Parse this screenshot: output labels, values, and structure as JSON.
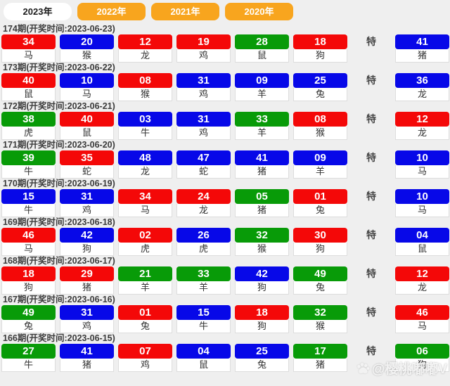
{
  "colors": {
    "red": "#f40808",
    "blue": "#0708e8",
    "green": "#089b08",
    "orange": "#f8a51e",
    "bg": "#efefef"
  },
  "tabs": [
    {
      "label": "2023年",
      "active": true
    },
    {
      "label": "2022年",
      "active": false
    },
    {
      "label": "2021年",
      "active": false
    },
    {
      "label": "2020年",
      "active": false
    }
  ],
  "special_label": "特",
  "watermark": {
    "text": "@樱桃嘟嘟V",
    "icon": "paw-icon"
  },
  "rows": [
    {
      "period": "174期",
      "time_label": "(开奖时间:2023-06-23)",
      "numbers": [
        {
          "num": "34",
          "color": "red",
          "animal": "马"
        },
        {
          "num": "20",
          "color": "blue",
          "animal": "猴"
        },
        {
          "num": "12",
          "color": "red",
          "animal": "龙"
        },
        {
          "num": "19",
          "color": "red",
          "animal": "鸡"
        },
        {
          "num": "28",
          "color": "green",
          "animal": "鼠"
        },
        {
          "num": "18",
          "color": "red",
          "animal": "狗"
        }
      ],
      "special": {
        "num": "41",
        "color": "blue",
        "animal": "猪"
      }
    },
    {
      "period": "173期",
      "time_label": "(开奖时间:2023-06-22)",
      "numbers": [
        {
          "num": "40",
          "color": "red",
          "animal": "鼠"
        },
        {
          "num": "10",
          "color": "blue",
          "animal": "马"
        },
        {
          "num": "08",
          "color": "red",
          "animal": "猴"
        },
        {
          "num": "31",
          "color": "blue",
          "animal": "鸡"
        },
        {
          "num": "09",
          "color": "blue",
          "animal": "羊"
        },
        {
          "num": "25",
          "color": "blue",
          "animal": "兔"
        }
      ],
      "special": {
        "num": "36",
        "color": "blue",
        "animal": "龙"
      }
    },
    {
      "period": "172期",
      "time_label": "(开奖时间:2023-06-21)",
      "numbers": [
        {
          "num": "38",
          "color": "green",
          "animal": "虎"
        },
        {
          "num": "40",
          "color": "red",
          "animal": "鼠"
        },
        {
          "num": "03",
          "color": "blue",
          "animal": "牛"
        },
        {
          "num": "31",
          "color": "blue",
          "animal": "鸡"
        },
        {
          "num": "33",
          "color": "green",
          "animal": "羊"
        },
        {
          "num": "08",
          "color": "red",
          "animal": "猴"
        }
      ],
      "special": {
        "num": "12",
        "color": "red",
        "animal": "龙"
      }
    },
    {
      "period": "171期",
      "time_label": "(开奖时间:2023-06-20)",
      "numbers": [
        {
          "num": "39",
          "color": "green",
          "animal": "牛"
        },
        {
          "num": "35",
          "color": "red",
          "animal": "蛇"
        },
        {
          "num": "48",
          "color": "blue",
          "animal": "龙"
        },
        {
          "num": "47",
          "color": "blue",
          "animal": "蛇"
        },
        {
          "num": "41",
          "color": "blue",
          "animal": "猪"
        },
        {
          "num": "09",
          "color": "blue",
          "animal": "羊"
        }
      ],
      "special": {
        "num": "10",
        "color": "blue",
        "animal": "马"
      }
    },
    {
      "period": "170期",
      "time_label": "(开奖时间:2023-06-19)",
      "numbers": [
        {
          "num": "15",
          "color": "blue",
          "animal": "牛"
        },
        {
          "num": "31",
          "color": "blue",
          "animal": "鸡"
        },
        {
          "num": "34",
          "color": "red",
          "animal": "马"
        },
        {
          "num": "24",
          "color": "red",
          "animal": "龙"
        },
        {
          "num": "05",
          "color": "green",
          "animal": "猪"
        },
        {
          "num": "01",
          "color": "red",
          "animal": "兔"
        }
      ],
      "special": {
        "num": "10",
        "color": "blue",
        "animal": "马"
      }
    },
    {
      "period": "169期",
      "time_label": "(开奖时间:2023-06-18)",
      "numbers": [
        {
          "num": "46",
          "color": "red",
          "animal": "马"
        },
        {
          "num": "42",
          "color": "blue",
          "animal": "狗"
        },
        {
          "num": "02",
          "color": "red",
          "animal": "虎"
        },
        {
          "num": "26",
          "color": "blue",
          "animal": "虎"
        },
        {
          "num": "32",
          "color": "green",
          "animal": "猴"
        },
        {
          "num": "30",
          "color": "red",
          "animal": "狗"
        }
      ],
      "special": {
        "num": "04",
        "color": "blue",
        "animal": "鼠"
      }
    },
    {
      "period": "168期",
      "time_label": "(开奖时间:2023-06-17)",
      "numbers": [
        {
          "num": "18",
          "color": "red",
          "animal": "狗"
        },
        {
          "num": "29",
          "color": "red",
          "animal": "猪"
        },
        {
          "num": "21",
          "color": "green",
          "animal": "羊"
        },
        {
          "num": "33",
          "color": "green",
          "animal": "羊"
        },
        {
          "num": "42",
          "color": "blue",
          "animal": "狗"
        },
        {
          "num": "49",
          "color": "green",
          "animal": "兔"
        }
      ],
      "special": {
        "num": "12",
        "color": "red",
        "animal": "龙"
      }
    },
    {
      "period": "167期",
      "time_label": "(开奖时间:2023-06-16)",
      "numbers": [
        {
          "num": "49",
          "color": "green",
          "animal": "兔"
        },
        {
          "num": "31",
          "color": "blue",
          "animal": "鸡"
        },
        {
          "num": "01",
          "color": "red",
          "animal": "兔"
        },
        {
          "num": "15",
          "color": "blue",
          "animal": "牛"
        },
        {
          "num": "18",
          "color": "red",
          "animal": "狗"
        },
        {
          "num": "32",
          "color": "green",
          "animal": "猴"
        }
      ],
      "special": {
        "num": "46",
        "color": "red",
        "animal": "马"
      }
    },
    {
      "period": "166期",
      "time_label": "(开奖时间:2023-06-15)",
      "numbers": [
        {
          "num": "27",
          "color": "green",
          "animal": "牛"
        },
        {
          "num": "41",
          "color": "blue",
          "animal": "猪"
        },
        {
          "num": "07",
          "color": "red",
          "animal": "鸡"
        },
        {
          "num": "04",
          "color": "blue",
          "animal": "鼠"
        },
        {
          "num": "25",
          "color": "blue",
          "animal": "兔"
        },
        {
          "num": "17",
          "color": "green",
          "animal": "猪"
        }
      ],
      "special": {
        "num": "06",
        "color": "green",
        "animal": "狗"
      }
    }
  ]
}
